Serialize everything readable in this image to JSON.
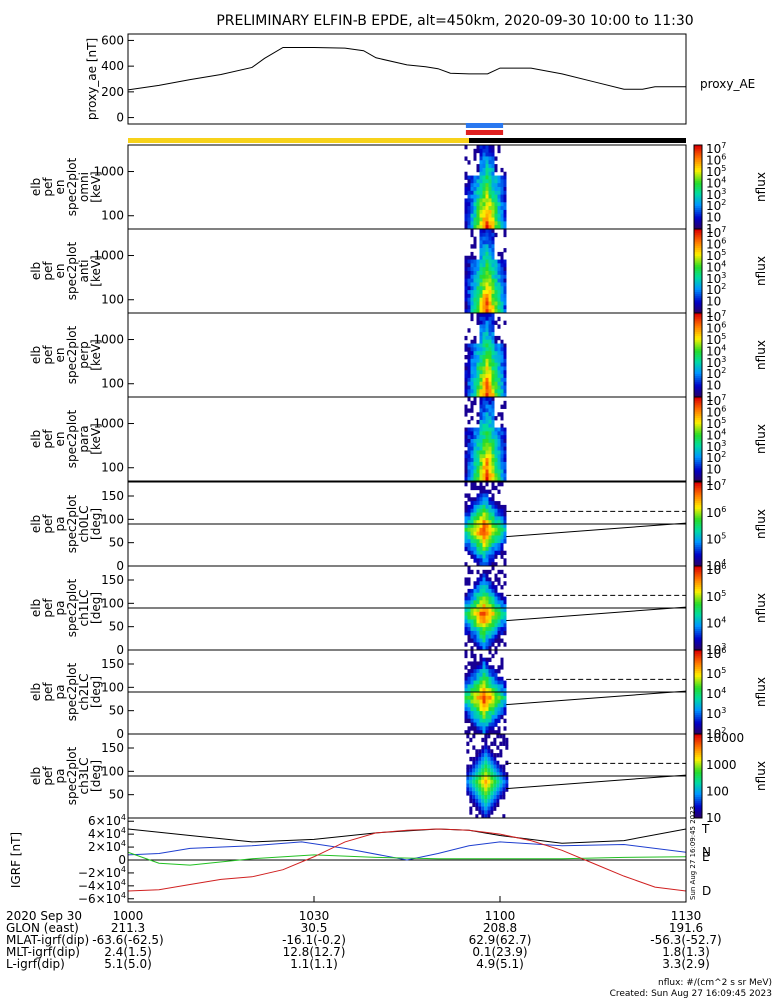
{
  "title": "PRELIMINARY ELFIN-B EPDE, alt=450km, 2020-09-30 10:00 to 11:30",
  "time_axis": {
    "date_label": "2020 Sep 30",
    "ticks": [
      "1000",
      "1030",
      "1100",
      "1130"
    ]
  },
  "orbit_table": [
    {
      "label": "GLON (east)",
      "values": [
        "211.3",
        "30.5",
        "208.8",
        "191.6"
      ]
    },
    {
      "label": "MLAT-igrf(dip)",
      "values": [
        "-63.6(-62.5)",
        "-16.1(-0.2)",
        "62.9(62.7)",
        "-56.3(-52.7)"
      ]
    },
    {
      "label": "MLT-igrf(dip)",
      "values": [
        "2.4(1.5)",
        "12.8(12.7)",
        "0.1(23.9)",
        "1.8(1.3)"
      ]
    },
    {
      "label": "L-igrf(dip)",
      "values": [
        "5.1(5.0)",
        "1.1(1.1)",
        "4.9(5.1)",
        "3.3(2.9)"
      ]
    }
  ],
  "footer": {
    "units": "nflux: #/(cm^2 s sr MeV)",
    "created": "Created: Sun Aug 27 16:09:45 2023",
    "side_stamp": "Sun Aug 27 16:09:45 2023"
  },
  "colorbar_label": "nflux",
  "colors": {
    "sunlit_bar": "#f7d21a",
    "shadow_bar": "#000000",
    "blue_bar": "#2a78f0",
    "red_bar": "#e02020",
    "igrf_t": "#000000",
    "igrf_n": "#1f3fcf",
    "igrf_e": "#22c022",
    "igrf_d": "#d02020"
  },
  "chart_data": [
    {
      "type": "line",
      "panel": "proxy_ae",
      "ylabel": "proxy_ae [nT]",
      "legend": "proxy_AE",
      "ylim": [
        -50,
        650
      ],
      "yticks": [
        "0",
        "200",
        "400",
        "600"
      ],
      "x": [
        0,
        5,
        10,
        15,
        20,
        22,
        25,
        30,
        35,
        38,
        40,
        45,
        48,
        50,
        52,
        55,
        58,
        60,
        63,
        65,
        70,
        75,
        80,
        83,
        85,
        90
      ],
      "y": [
        215,
        250,
        295,
        335,
        390,
        460,
        545,
        545,
        540,
        520,
        465,
        410,
        395,
        380,
        345,
        340,
        340,
        385,
        385,
        385,
        340,
        280,
        220,
        220,
        240,
        240
      ]
    },
    {
      "type": "heatmap",
      "panel": "en omni",
      "ylabel": "elb pef en spec2plot omni [keV]",
      "yscale": "log",
      "yticks": [
        "100",
        "1000"
      ],
      "colorbar_ticks": [
        "1",
        "10",
        "10^2",
        "10^3",
        "10^4",
        "10^5",
        "10^6",
        "10^7"
      ]
    },
    {
      "type": "heatmap",
      "panel": "en anti",
      "ylabel": "elb pef en spec2plot anti [keV]",
      "yscale": "log",
      "yticks": [
        "100",
        "1000"
      ],
      "colorbar_ticks": [
        "1",
        "10",
        "10^2",
        "10^3",
        "10^4",
        "10^5",
        "10^6",
        "10^7"
      ]
    },
    {
      "type": "heatmap",
      "panel": "en perp",
      "ylabel": "elb pef en spec2plot perp [keV]",
      "yscale": "log",
      "yticks": [
        "100",
        "1000"
      ],
      "colorbar_ticks": [
        "1",
        "10",
        "10^2",
        "10^3",
        "10^4",
        "10^5",
        "10^6",
        "10^7"
      ]
    },
    {
      "type": "heatmap",
      "panel": "en para",
      "ylabel": "elb pef en spec2plot para [keV]",
      "yscale": "log",
      "yticks": [
        "100",
        "1000"
      ],
      "colorbar_ticks": [
        "1",
        "10",
        "10^2",
        "10^3",
        "10^4",
        "10^5",
        "10^6",
        "10^7"
      ]
    },
    {
      "type": "heatmap",
      "panel": "pa ch0LC",
      "ylabel": "elb pef pa spec2plot ch0LC [deg]",
      "ylim": [
        0,
        180
      ],
      "yticks": [
        "0",
        "50",
        "100",
        "150"
      ],
      "colorbar_ticks": [
        "10^4",
        "10^5",
        "10^6",
        "10^7"
      ]
    },
    {
      "type": "heatmap",
      "panel": "pa ch1LC",
      "ylabel": "elb pef pa spec2plot ch1LC [deg]",
      "ylim": [
        0,
        180
      ],
      "yticks": [
        "0",
        "50",
        "100",
        "150"
      ],
      "colorbar_ticks": [
        "10^3",
        "10^4",
        "10^5",
        "10^6"
      ]
    },
    {
      "type": "heatmap",
      "panel": "pa ch2LC",
      "ylabel": "elb pef pa spec2plot ch2LC [deg]",
      "ylim": [
        0,
        180
      ],
      "yticks": [
        "0",
        "50",
        "100",
        "150"
      ],
      "colorbar_ticks": [
        "10^2",
        "10^3",
        "10^4",
        "10^5",
        "10^6"
      ]
    },
    {
      "type": "heatmap",
      "panel": "pa ch3LC",
      "ylabel": "elb pef pa spec2plot ch3LC [deg]",
      "ylim": [
        0,
        180
      ],
      "yticks": [
        "50",
        "100",
        "150"
      ],
      "colorbar_ticks": [
        "10",
        "100",
        "1000",
        "10000"
      ]
    },
    {
      "type": "line",
      "panel": "IGRF",
      "ylabel": "IGRF [nT]",
      "ylim": [
        -65000,
        65000
      ],
      "yticks": [
        "6×10^4",
        "4×10^4",
        "2×10^4",
        "0",
        "−2×10^4",
        "−4×10^4",
        "−6×10^4"
      ],
      "series": [
        {
          "name": "T",
          "x": [
            0,
            10,
            20,
            30,
            40,
            50,
            55,
            60,
            70,
            80,
            90
          ],
          "y": [
            48000,
            38000,
            28000,
            32000,
            42000,
            48000,
            46000,
            38000,
            26000,
            30000,
            48000
          ]
        },
        {
          "name": "N",
          "x": [
            0,
            5,
            10,
            20,
            28,
            35,
            45,
            50,
            55,
            60,
            70,
            80,
            90
          ],
          "y": [
            8000,
            10000,
            18000,
            22000,
            28000,
            18000,
            0,
            10000,
            22000,
            28000,
            22000,
            24000,
            12000
          ]
        },
        {
          "name": "E",
          "x": [
            0,
            5,
            10,
            20,
            30,
            40,
            50,
            60,
            70,
            80,
            90
          ],
          "y": [
            12000,
            -5000,
            -8000,
            2000,
            8000,
            4000,
            2000,
            2000,
            2000,
            4000,
            5000
          ]
        },
        {
          "name": "D",
          "x": [
            0,
            5,
            10,
            15,
            20,
            25,
            30,
            35,
            40,
            45,
            50,
            55,
            60,
            65,
            70,
            75,
            80,
            85,
            90
          ],
          "y": [
            -48000,
            -46000,
            -38000,
            -30000,
            -26000,
            -15000,
            5000,
            28000,
            42000,
            46000,
            48000,
            46000,
            40000,
            30000,
            15000,
            -5000,
            -25000,
            -42000,
            -48000
          ]
        }
      ]
    }
  ]
}
